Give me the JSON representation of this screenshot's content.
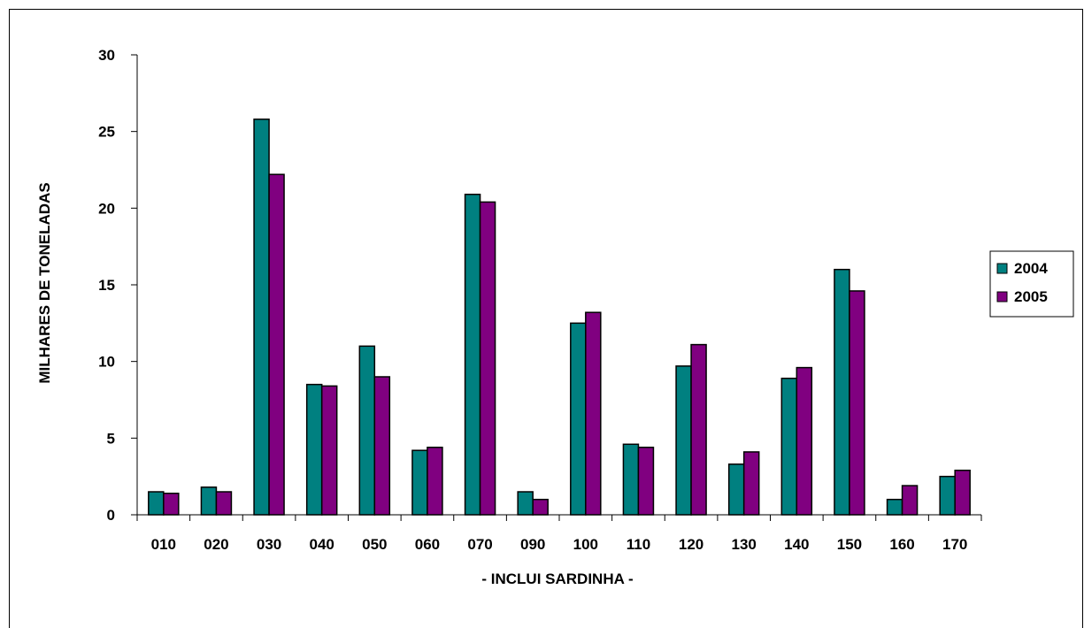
{
  "chart_data": {
    "type": "bar",
    "title": "",
    "xlabel": "- INCLUI SARDINHA -",
    "ylabel": "MILHARES DE TONELADAS",
    "ylim": [
      0,
      30
    ],
    "yticks": [
      "0",
      "5",
      "10",
      "15",
      "20",
      "25",
      "30"
    ],
    "grid": false,
    "legend_position": "right",
    "categories": [
      "010",
      "020",
      "030",
      "040",
      "050",
      "060",
      "070",
      "090",
      "100",
      "110",
      "120",
      "130",
      "140",
      "150",
      "160",
      "170"
    ],
    "series": [
      {
        "name": "2004",
        "color": "#008080",
        "values": [
          1.5,
          1.8,
          25.8,
          8.5,
          11.0,
          4.2,
          20.9,
          1.5,
          12.5,
          4.6,
          9.7,
          3.3,
          8.9,
          16.0,
          1.0,
          2.5
        ]
      },
      {
        "name": "2005",
        "color": "#800080",
        "values": [
          1.4,
          1.5,
          22.2,
          8.4,
          9.0,
          4.4,
          20.4,
          1.0,
          13.2,
          4.4,
          11.1,
          4.1,
          9.6,
          14.6,
          1.9,
          2.9
        ]
      }
    ]
  }
}
